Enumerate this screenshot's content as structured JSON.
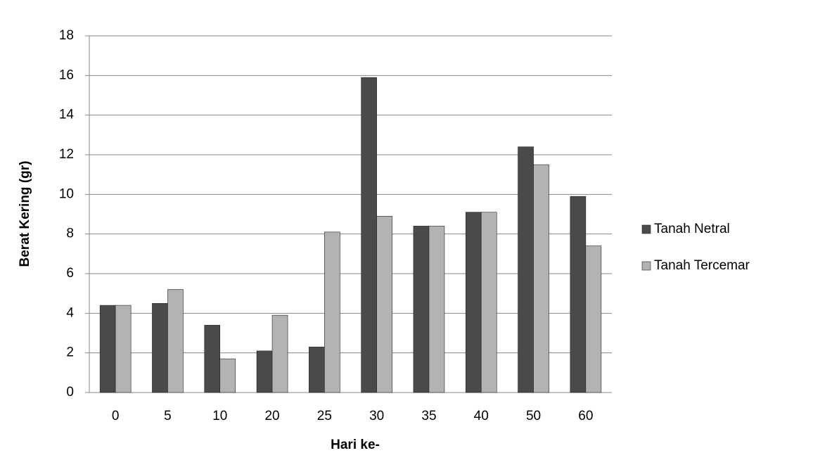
{
  "chart_data": {
    "type": "bar",
    "x_label": "Hari ke-",
    "y_label": "Berat Kering (gr)",
    "categories": [
      "0",
      "5",
      "10",
      "20",
      "25",
      "30",
      "35",
      "40",
      "50",
      "60"
    ],
    "series": [
      {
        "name": "Tanah Netral",
        "color": "#4a4a4a",
        "values": [
          4.4,
          4.5,
          3.4,
          2.1,
          2.3,
          15.9,
          8.4,
          9.1,
          12.4,
          9.9
        ]
      },
      {
        "name": "Tanah Tercemar",
        "color": "#b3b3b3",
        "values": [
          4.4,
          5.2,
          1.7,
          3.9,
          8.1,
          8.9,
          8.4,
          9.1,
          11.5,
          7.4
        ]
      }
    ],
    "ylim": [
      0,
      18
    ],
    "yticks": [
      0,
      2,
      4,
      6,
      8,
      10,
      12,
      14,
      16,
      18
    ],
    "grid": true,
    "legend": "right"
  }
}
